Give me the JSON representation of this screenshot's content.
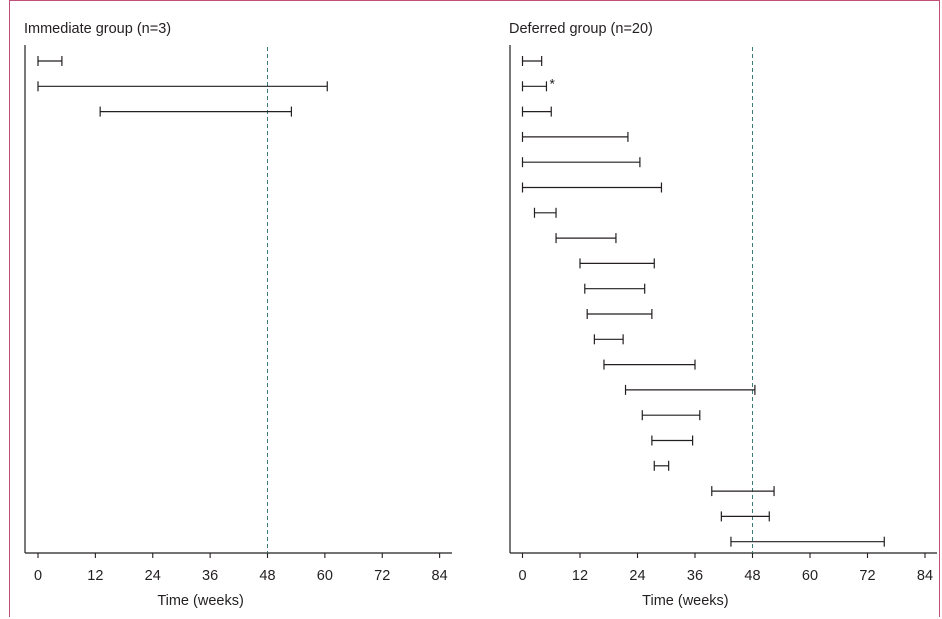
{
  "chart_data": [
    {
      "type": "range",
      "title": "Immediate group (n=3)",
      "xlabel": "Time (weeks)",
      "xticks": [
        0,
        12,
        24,
        36,
        48,
        60,
        72,
        84
      ],
      "xlim": [
        -3,
        86
      ],
      "reference_line_x": 48,
      "intervals": [
        {
          "start": 0,
          "end": 5
        },
        {
          "start": 0,
          "end": 60.5
        },
        {
          "start": 13,
          "end": 53
        }
      ]
    },
    {
      "type": "range",
      "title": "Deferred group (n=20)",
      "xlabel": "Time (weeks)",
      "xticks": [
        0,
        12,
        24,
        36,
        48,
        60,
        72,
        84
      ],
      "xlim": [
        -3,
        86
      ],
      "reference_line_x": 48,
      "intervals": [
        {
          "start": 0,
          "end": 4
        },
        {
          "start": 0,
          "end": 5,
          "mark": "*"
        },
        {
          "start": 0,
          "end": 6
        },
        {
          "start": 0,
          "end": 22
        },
        {
          "start": 0,
          "end": 24.5
        },
        {
          "start": 0,
          "end": 29
        },
        {
          "start": 2.5,
          "end": 7
        },
        {
          "start": 7,
          "end": 19.5
        },
        {
          "start": 12,
          "end": 27.5
        },
        {
          "start": 13,
          "end": 25.5
        },
        {
          "start": 13.5,
          "end": 27
        },
        {
          "start": 15,
          "end": 21
        },
        {
          "start": 17,
          "end": 36
        },
        {
          "start": 21.5,
          "end": 48.5
        },
        {
          "start": 25,
          "end": 37
        },
        {
          "start": 27,
          "end": 35.5
        },
        {
          "start": 27.5,
          "end": 30.5
        },
        {
          "start": 39.5,
          "end": 52.5
        },
        {
          "start": 41.5,
          "end": 51.5
        },
        {
          "start": 43.5,
          "end": 75.5
        }
      ]
    }
  ]
}
